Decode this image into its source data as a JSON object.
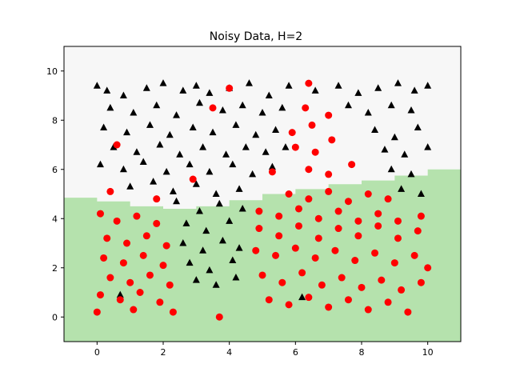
{
  "chart_data": {
    "type": "scatter",
    "title": "Noisy Data, H=2",
    "xlabel": "",
    "ylabel": "",
    "xlim": [
      -1,
      11
    ],
    "ylim": [
      -1,
      11
    ],
    "xticks": [
      0,
      2,
      4,
      6,
      8,
      10
    ],
    "yticks": [
      0,
      2,
      4,
      6,
      8,
      10
    ],
    "grid": false,
    "colors": {
      "region_upper": "#f7f7f7",
      "region_lower": "#b5e2ad",
      "class_a": "#000000",
      "class_b": "#ff0000"
    },
    "decision_boundary": {
      "x": [
        -1,
        0,
        1,
        2,
        3,
        4,
        5,
        6,
        7,
        8,
        9,
        10,
        11
      ],
      "y": [
        4.85,
        4.7,
        4.5,
        4.4,
        4.5,
        4.75,
        5.0,
        5.2,
        5.4,
        5.55,
        5.75,
        6.0,
        6.2
      ]
    },
    "series": [
      {
        "marker": "triangle",
        "color": "#000000",
        "points": [
          [
            0,
            9.4
          ],
          [
            0.3,
            9.2
          ],
          [
            0.8,
            9.0
          ],
          [
            1.5,
            9.3
          ],
          [
            2.0,
            9.5
          ],
          [
            2.6,
            9.2
          ],
          [
            3.0,
            9.4
          ],
          [
            3.4,
            9.1
          ],
          [
            4.0,
            9.3
          ],
          [
            4.6,
            9.5
          ],
          [
            5.2,
            9.0
          ],
          [
            5.8,
            9.4
          ],
          [
            6.6,
            9.2
          ],
          [
            7.3,
            9.4
          ],
          [
            7.9,
            9.1
          ],
          [
            8.5,
            9.3
          ],
          [
            9.1,
            9.5
          ],
          [
            9.6,
            9.2
          ],
          [
            10.0,
            9.4
          ],
          [
            0.4,
            8.5
          ],
          [
            1.1,
            8.3
          ],
          [
            1.8,
            8.6
          ],
          [
            2.4,
            8.2
          ],
          [
            3.1,
            8.7
          ],
          [
            3.8,
            8.4
          ],
          [
            4.4,
            8.6
          ],
          [
            5.0,
            8.3
          ],
          [
            5.6,
            8.5
          ],
          [
            7.6,
            8.6
          ],
          [
            8.2,
            8.3
          ],
          [
            8.9,
            8.6
          ],
          [
            9.5,
            8.4
          ],
          [
            0.2,
            7.7
          ],
          [
            0.9,
            7.5
          ],
          [
            1.6,
            7.8
          ],
          [
            2.2,
            7.4
          ],
          [
            2.9,
            7.7
          ],
          [
            3.5,
            7.5
          ],
          [
            4.2,
            7.8
          ],
          [
            4.8,
            7.4
          ],
          [
            5.4,
            7.6
          ],
          [
            8.4,
            7.6
          ],
          [
            9.0,
            7.3
          ],
          [
            9.7,
            7.7
          ],
          [
            0.5,
            6.9
          ],
          [
            1.2,
            6.7
          ],
          [
            1.9,
            7.0
          ],
          [
            2.5,
            6.6
          ],
          [
            3.2,
            6.9
          ],
          [
            3.9,
            6.6
          ],
          [
            4.5,
            6.9
          ],
          [
            5.1,
            6.7
          ],
          [
            5.7,
            6.9
          ],
          [
            8.7,
            6.8
          ],
          [
            9.3,
            6.6
          ],
          [
            10.0,
            6.9
          ],
          [
            0.1,
            6.2
          ],
          [
            0.8,
            6.0
          ],
          [
            1.4,
            6.3
          ],
          [
            2.1,
            5.9
          ],
          [
            2.8,
            6.2
          ],
          [
            3.4,
            5.9
          ],
          [
            4.1,
            6.2
          ],
          [
            4.7,
            5.8
          ],
          [
            5.3,
            6.1
          ],
          [
            8.9,
            6.0
          ],
          [
            9.5,
            5.8
          ],
          [
            1.0,
            5.3
          ],
          [
            1.7,
            5.5
          ],
          [
            2.3,
            5.1
          ],
          [
            3.0,
            5.4
          ],
          [
            3.6,
            5.0
          ],
          [
            4.3,
            5.2
          ],
          [
            9.2,
            5.2
          ],
          [
            9.8,
            5.0
          ],
          [
            2.4,
            4.7
          ],
          [
            3.1,
            4.3
          ],
          [
            3.7,
            4.6
          ],
          [
            4.4,
            4.4
          ],
          [
            2.7,
            3.8
          ],
          [
            3.3,
            3.5
          ],
          [
            4.0,
            3.9
          ],
          [
            2.6,
            3.0
          ],
          [
            3.2,
            2.7
          ],
          [
            3.8,
            3.1
          ],
          [
            4.3,
            2.8
          ],
          [
            2.8,
            2.2
          ],
          [
            3.4,
            1.9
          ],
          [
            4.1,
            2.3
          ],
          [
            3.0,
            1.5
          ],
          [
            3.6,
            1.3
          ],
          [
            4.2,
            1.6
          ],
          [
            0.7,
            0.9
          ],
          [
            6.2,
            0.8
          ]
        ]
      },
      {
        "marker": "circle",
        "color": "#ff0000",
        "points": [
          [
            0.1,
            4.2
          ],
          [
            0.6,
            3.9
          ],
          [
            1.2,
            4.1
          ],
          [
            1.8,
            3.8
          ],
          [
            0.3,
            3.2
          ],
          [
            0.9,
            3.0
          ],
          [
            1.5,
            3.3
          ],
          [
            2.1,
            2.9
          ],
          [
            0.2,
            2.4
          ],
          [
            0.8,
            2.2
          ],
          [
            1.4,
            2.5
          ],
          [
            2.0,
            2.1
          ],
          [
            0.4,
            1.6
          ],
          [
            1.0,
            1.4
          ],
          [
            1.6,
            1.7
          ],
          [
            2.2,
            1.3
          ],
          [
            0.1,
            0.9
          ],
          [
            0.7,
            0.7
          ],
          [
            1.3,
            1.0
          ],
          [
            1.9,
            0.6
          ],
          [
            0.0,
            0.2
          ],
          [
            1.1,
            0.3
          ],
          [
            2.3,
            0.2
          ],
          [
            3.7,
            0.0
          ],
          [
            4.9,
            3.6
          ],
          [
            5.5,
            3.3
          ],
          [
            6.1,
            3.7
          ],
          [
            6.7,
            3.2
          ],
          [
            7.3,
            3.6
          ],
          [
            7.9,
            3.3
          ],
          [
            8.5,
            3.7
          ],
          [
            9.1,
            3.2
          ],
          [
            9.7,
            3.5
          ],
          [
            4.8,
            2.7
          ],
          [
            5.4,
            2.5
          ],
          [
            6.0,
            2.8
          ],
          [
            6.6,
            2.4
          ],
          [
            7.2,
            2.7
          ],
          [
            7.8,
            2.3
          ],
          [
            8.4,
            2.6
          ],
          [
            9.0,
            2.2
          ],
          [
            9.6,
            2.5
          ],
          [
            10.0,
            2.0
          ],
          [
            5.0,
            1.7
          ],
          [
            5.6,
            1.4
          ],
          [
            6.2,
            1.8
          ],
          [
            6.8,
            1.3
          ],
          [
            7.4,
            1.6
          ],
          [
            8.0,
            1.2
          ],
          [
            8.6,
            1.5
          ],
          [
            9.2,
            1.1
          ],
          [
            9.8,
            1.4
          ],
          [
            5.2,
            0.7
          ],
          [
            5.8,
            0.5
          ],
          [
            6.4,
            0.8
          ],
          [
            7.0,
            0.4
          ],
          [
            7.6,
            0.7
          ],
          [
            8.2,
            0.3
          ],
          [
            8.8,
            0.6
          ],
          [
            9.4,
            0.2
          ],
          [
            4.9,
            4.3
          ],
          [
            5.5,
            4.1
          ],
          [
            6.1,
            4.4
          ],
          [
            6.7,
            4.0
          ],
          [
            7.3,
            4.3
          ],
          [
            7.9,
            3.9
          ],
          [
            8.5,
            4.2
          ],
          [
            9.1,
            3.9
          ],
          [
            9.8,
            4.1
          ],
          [
            5.8,
            5.0
          ],
          [
            6.4,
            4.8
          ],
          [
            7.0,
            5.1
          ],
          [
            7.6,
            4.7
          ],
          [
            8.2,
            5.0
          ],
          [
            8.8,
            4.8
          ],
          [
            5.3,
            5.9
          ],
          [
            6.4,
            6.0
          ],
          [
            7.0,
            5.8
          ],
          [
            7.7,
            6.2
          ],
          [
            6.0,
            6.9
          ],
          [
            6.6,
            6.7
          ],
          [
            5.9,
            7.5
          ],
          [
            6.5,
            7.8
          ],
          [
            7.1,
            7.2
          ],
          [
            6.3,
            8.5
          ],
          [
            7.0,
            8.2
          ],
          [
            6.4,
            9.5
          ],
          [
            3.5,
            8.5
          ],
          [
            4.0,
            9.3
          ],
          [
            0.6,
            7.0
          ],
          [
            0.4,
            5.1
          ],
          [
            1.8,
            4.8
          ],
          [
            2.9,
            5.6
          ]
        ]
      }
    ]
  }
}
